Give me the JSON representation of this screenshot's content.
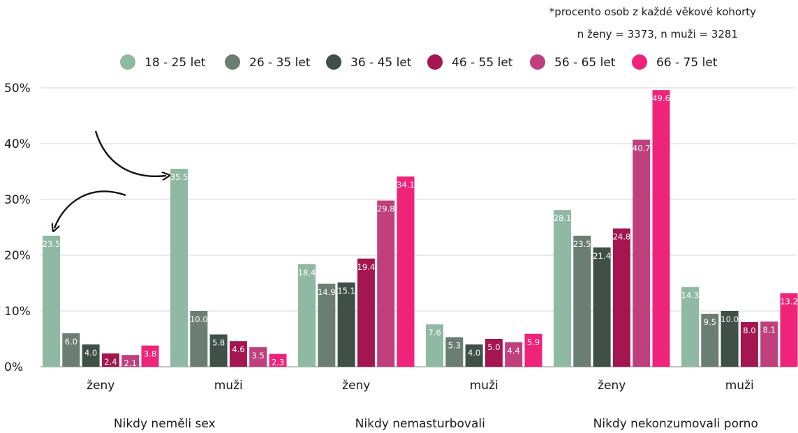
{
  "notes": {
    "line1": "*procento osob z každé věkové kohorty",
    "line2": "n ženy = 3373, n muži = 3281"
  },
  "chart_data": {
    "type": "bar",
    "ylim": [
      0,
      50
    ],
    "yticks": [
      0,
      10,
      20,
      30,
      40,
      50
    ],
    "ytick_labels": [
      "0%",
      "10%",
      "20%",
      "30%",
      "40%",
      "50%"
    ],
    "grid": true,
    "legend_position": "top",
    "series": [
      {
        "name": "18 - 25 let",
        "color": "#8fb9a2"
      },
      {
        "name": "26 - 35 let",
        "color": "#6b7e72"
      },
      {
        "name": "36 - 45 let",
        "color": "#3f5048"
      },
      {
        "name": "46 - 55 let",
        "color": "#a3164f"
      },
      {
        "name": "56 - 65 let",
        "color": "#c0407e"
      },
      {
        "name": "66 - 75 let",
        "color": "#f0237a"
      }
    ],
    "groups": [
      {
        "label": "Nikdy neměli sex",
        "categories": [
          {
            "label": "ženy",
            "values": [
              23.5,
              6.0,
              4.0,
              2.4,
              2.1,
              3.8
            ]
          },
          {
            "label": "muži",
            "values": [
              35.5,
              10.0,
              5.8,
              4.6,
              3.5,
              2.3
            ]
          }
        ]
      },
      {
        "label": "Nikdy nemasturbovali",
        "categories": [
          {
            "label": "ženy",
            "values": [
              18.4,
              14.9,
              15.1,
              19.4,
              29.8,
              34.1
            ]
          },
          {
            "label": "muži",
            "values": [
              7.6,
              5.3,
              4.0,
              5.0,
              4.4,
              5.9
            ]
          }
        ]
      },
      {
        "label": "Nikdy nekonzumovali porno",
        "categories": [
          {
            "label": "ženy",
            "values": [
              28.1,
              23.5,
              21.4,
              24.8,
              40.7,
              49.6
            ]
          },
          {
            "label": "muži",
            "values": [
              14.3,
              9.5,
              10.0,
              8.0,
              8.1,
              13.2
            ]
          }
        ]
      }
    ]
  }
}
